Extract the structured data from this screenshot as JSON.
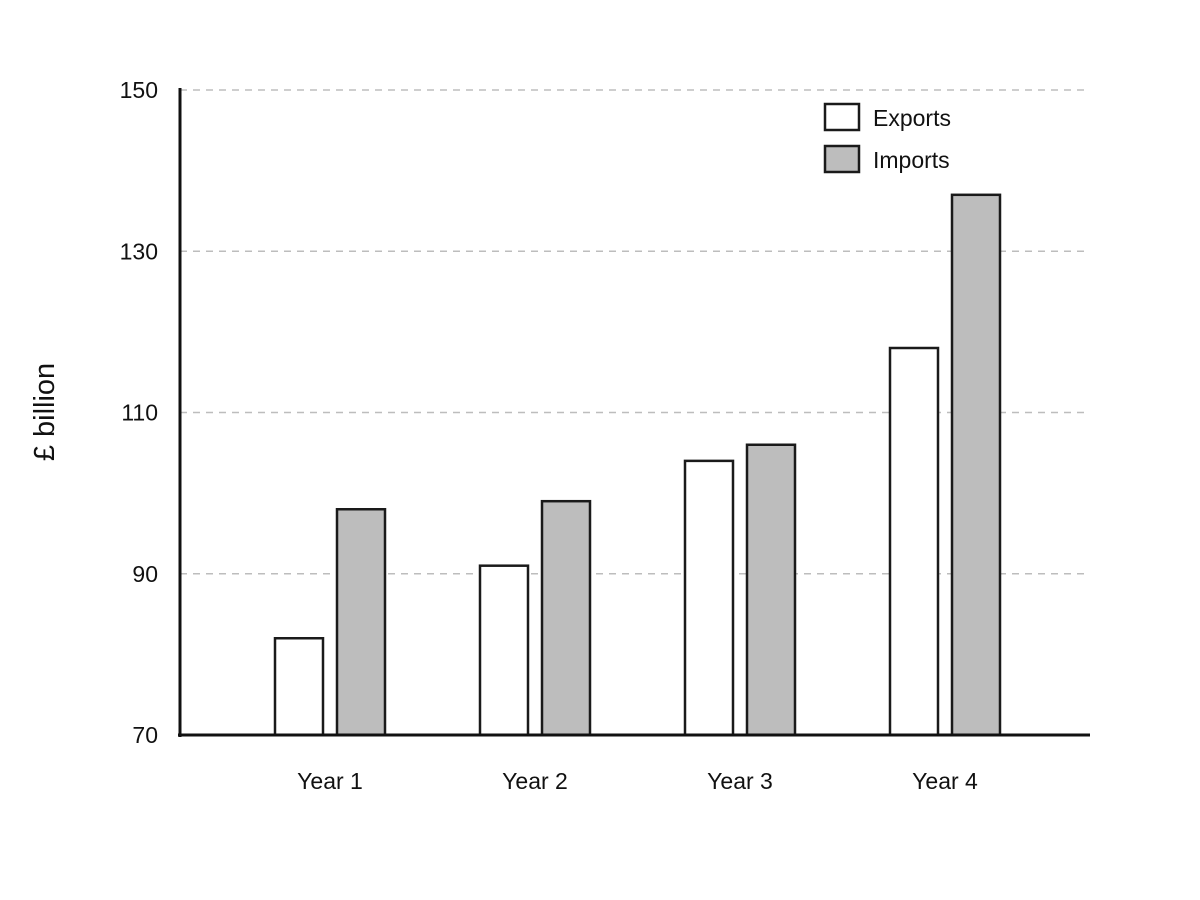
{
  "chart_data": {
    "type": "bar",
    "title": "",
    "xlabel": "",
    "ylabel": "£ billion",
    "categories": [
      "Year 1",
      "Year 2",
      "Year 3",
      "Year 4"
    ],
    "series": [
      {
        "name": "Exports",
        "values": [
          82,
          91,
          104,
          118
        ],
        "color": "#ffffff"
      },
      {
        "name": "Imports",
        "values": [
          98,
          99,
          106,
          137
        ],
        "color": "#bdbdbd"
      }
    ],
    "ylim": [
      70,
      150
    ],
    "yticks": [
      "70",
      "90",
      "110",
      "130",
      "150"
    ],
    "grid": true,
    "legend_position": "top-right"
  }
}
